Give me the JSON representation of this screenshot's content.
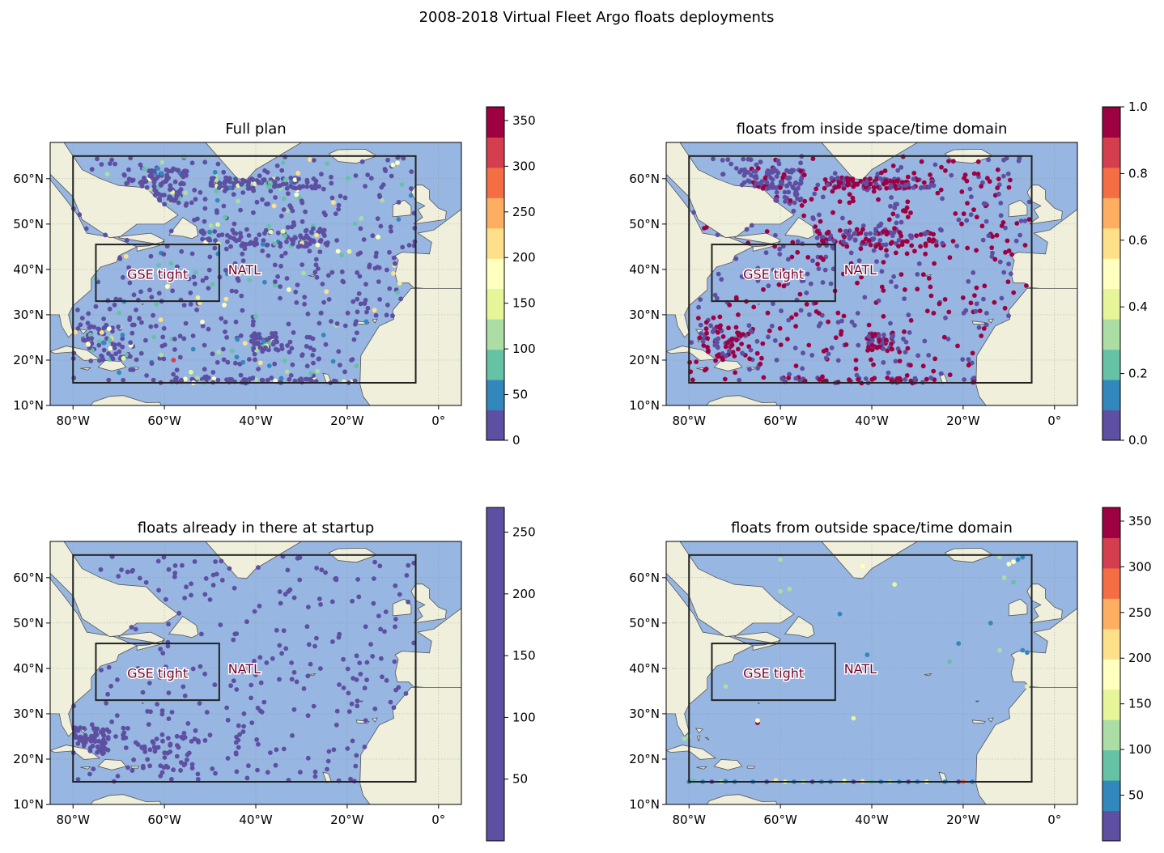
{
  "figure": {
    "title": "2008-2018 Virtual Fleet Argo floats deployments",
    "colors": {
      "ocean": "#97b6e1",
      "land": "#efefdb",
      "coast": "#555555",
      "box": "#222222",
      "label_text": "#7a0026",
      "label_halo": "#ffffff"
    },
    "map_extent": {
      "lon": [
        -85,
        5
      ],
      "lat": [
        10,
        68
      ]
    },
    "x_ticks": [
      {
        "lon": -80,
        "label": "80°W"
      },
      {
        "lon": -60,
        "label": "60°W"
      },
      {
        "lon": -40,
        "label": "40°W"
      },
      {
        "lon": -20,
        "label": "20°W"
      },
      {
        "lon": 0,
        "label": "0°"
      }
    ],
    "y_ticks": [
      {
        "lat": 10,
        "label": "10°N"
      },
      {
        "lat": 20,
        "label": "20°N"
      },
      {
        "lat": 30,
        "label": "30°N"
      },
      {
        "lat": 40,
        "label": "40°N"
      },
      {
        "lat": 50,
        "label": "50°N"
      },
      {
        "lat": 60,
        "label": "60°N"
      }
    ],
    "regions": [
      {
        "name": "NATL",
        "lon": [
          -80,
          -5
        ],
        "lat": [
          15,
          65
        ],
        "label": "NATL",
        "label_lon": -42.5,
        "label_lat": 40
      },
      {
        "name": "GSE tight",
        "lon": [
          -75,
          -48
        ],
        "lat": [
          33,
          45.5
        ],
        "label": "GSE tight",
        "label_lon": -61.5,
        "label_lat": 39
      }
    ]
  },
  "panels": [
    {
      "id": "full-plan",
      "title": "Full plan",
      "colorbar": {
        "colormap": [
          "#5e4fa2",
          "#3288bd",
          "#66c2a5",
          "#abdda4",
          "#e6f598",
          "#ffffbf",
          "#fee08b",
          "#fdae61",
          "#f46d43",
          "#d53e4f",
          "#9e0142"
        ],
        "range": [
          0,
          365
        ],
        "ticks": [
          {
            "v": 0,
            "label": "0"
          },
          {
            "v": 50,
            "label": "50"
          },
          {
            "v": 100,
            "label": "100"
          },
          {
            "v": 150,
            "label": "150"
          },
          {
            "v": 200,
            "label": "200"
          },
          {
            "v": 250,
            "label": "250"
          },
          {
            "v": 300,
            "label": "300"
          },
          {
            "v": 350,
            "label": "350"
          }
        ]
      },
      "points": {
        "n": 1000,
        "seed": 11,
        "clusters": [
          [
            -62,
            58,
            7,
            4,
            0.1
          ],
          [
            -38,
            59,
            12,
            1.2,
            0.1
          ],
          [
            -38,
            47,
            14,
            2.0,
            0.08
          ],
          [
            -38,
            24,
            3,
            2,
            0.04
          ],
          [
            -72,
            24,
            6,
            4,
            0.06
          ],
          [
            -30,
            15.5,
            30,
            0.6,
            0.07
          ]
        ],
        "value_mode": "mix",
        "mix": [
          [
            0.78,
            [
              0,
              20
            ]
          ],
          [
            0.12,
            [
              20,
              100
            ]
          ],
          [
            0.1,
            [
              100,
              230
            ]
          ]
        ],
        "extras": [
          [
            -58,
            20,
            330
          ],
          [
            -10,
            63,
            180
          ],
          [
            -9,
            63.5,
            190
          ],
          [
            -22,
            44,
            170
          ],
          [
            -36,
            54,
            200
          ]
        ]
      }
    },
    {
      "id": "inside-domain",
      "title": "floats from inside space/time domain",
      "colorbar": {
        "colormap": [
          "#5e4fa2",
          "#3288bd",
          "#66c2a5",
          "#abdda4",
          "#e6f598",
          "#ffffbf",
          "#fee08b",
          "#fdae61",
          "#f46d43",
          "#d53e4f",
          "#9e0142"
        ],
        "range": [
          0,
          1
        ],
        "ticks": [
          {
            "v": 0,
            "label": "0.0"
          },
          {
            "v": 0.2,
            "label": "0.2"
          },
          {
            "v": 0.4,
            "label": "0.4"
          },
          {
            "v": 0.6,
            "label": "0.6"
          },
          {
            "v": 0.8,
            "label": "0.8"
          },
          {
            "v": 1,
            "label": "1.0"
          }
        ]
      },
      "points": {
        "n": 1000,
        "seed": 11,
        "clusters": [
          [
            -62,
            58,
            7,
            4,
            0.1
          ],
          [
            -38,
            59,
            12,
            1.2,
            0.1
          ],
          [
            -38,
            47,
            14,
            2.0,
            0.08
          ],
          [
            -38,
            24,
            3,
            2,
            0.04
          ],
          [
            -72,
            24,
            6,
            4,
            0.06
          ],
          [
            -30,
            15.5,
            30,
            0.6,
            0.07
          ]
        ],
        "value_mode": "binary",
        "binary_p": 0.45,
        "extras": []
      }
    },
    {
      "id": "startup",
      "title": "floats already in there at startup",
      "colorbar": {
        "colormap": [
          "#5e4fa2",
          "#5e4fa2"
        ],
        "range": [
          0,
          270
        ],
        "ticks": [
          {
            "v": 50,
            "label": "50"
          },
          {
            "v": 100,
            "label": "100"
          },
          {
            "v": 150,
            "label": "150"
          },
          {
            "v": 200,
            "label": "200"
          },
          {
            "v": 250,
            "label": "250"
          }
        ]
      },
      "points": {
        "n": 400,
        "seed": 23,
        "clusters": [
          [
            -76,
            24,
            4,
            3,
            0.12
          ],
          [
            -62,
            22,
            10,
            4,
            0.1
          ]
        ],
        "value_mode": "const",
        "extras": []
      }
    },
    {
      "id": "outside-domain",
      "title": "floats from outside space/time domain",
      "colorbar": {
        "colormap": [
          "#5e4fa2",
          "#3288bd",
          "#66c2a5",
          "#abdda4",
          "#e6f598",
          "#ffffbf",
          "#fee08b",
          "#fdae61",
          "#f46d43",
          "#d53e4f",
          "#9e0142"
        ],
        "range": [
          0,
          365
        ],
        "ticks": [
          {
            "v": 50,
            "label": "50"
          },
          {
            "v": 100,
            "label": "100"
          },
          {
            "v": 150,
            "label": "150"
          },
          {
            "v": 200,
            "label": "200"
          },
          {
            "v": 250,
            "label": "250"
          },
          {
            "v": 300,
            "label": "300"
          },
          {
            "v": 350,
            "label": "350"
          }
        ]
      },
      "points": {
        "n": 0,
        "seed": 5,
        "clusters": [],
        "value_mode": "explicit",
        "extras": [
          [
            -80,
            15,
            60
          ],
          [
            -79,
            15.2,
            80
          ],
          [
            -77,
            15,
            40
          ],
          [
            -75,
            15,
            30
          ],
          [
            -73,
            15,
            120
          ],
          [
            -72,
            15.1,
            50
          ],
          [
            -70,
            15,
            40
          ],
          [
            -66,
            15,
            60
          ],
          [
            -63,
            15,
            30
          ],
          [
            -61,
            15.3,
            200
          ],
          [
            -59,
            15,
            150
          ],
          [
            -57,
            15,
            40
          ],
          [
            -55,
            15,
            100
          ],
          [
            -53,
            15,
            30
          ],
          [
            -51,
            15,
            60
          ],
          [
            -49,
            15,
            40
          ],
          [
            -46,
            15.2,
            140
          ],
          [
            -44,
            15,
            30
          ],
          [
            -42,
            15.1,
            200
          ],
          [
            -40,
            15,
            80
          ],
          [
            -38,
            15,
            40
          ],
          [
            -36,
            15,
            110
          ],
          [
            -34,
            15,
            60
          ],
          [
            -32,
            15,
            30
          ],
          [
            -30,
            15,
            40
          ],
          [
            -28,
            15,
            150
          ],
          [
            -24,
            15,
            50
          ],
          [
            -21,
            15,
            30
          ],
          [
            -20,
            15,
            280
          ],
          [
            -18,
            15,
            40
          ],
          [
            -81,
            24.5,
            120
          ],
          [
            -80,
            25,
            100
          ],
          [
            -65,
            28,
            340
          ],
          [
            -65,
            28.5,
            170
          ],
          [
            -72,
            36,
            120
          ],
          [
            -44,
            29,
            160
          ],
          [
            -35,
            58.5,
            140
          ],
          [
            -42,
            62.5,
            190
          ],
          [
            -60,
            57,
            110
          ],
          [
            -58,
            57.5,
            130
          ],
          [
            -60,
            64,
            120
          ],
          [
            -47,
            52,
            40
          ],
          [
            -41,
            43,
            40
          ],
          [
            -23,
            41.5,
            90
          ],
          [
            -21,
            45.5,
            50
          ],
          [
            -14,
            50,
            60
          ],
          [
            -12,
            44,
            100
          ],
          [
            -7,
            44,
            40
          ],
          [
            -6,
            43.5,
            60
          ],
          [
            -10,
            63,
            170
          ],
          [
            -9,
            63.5,
            190
          ],
          [
            -8,
            64,
            60
          ],
          [
            -7,
            64.5,
            50
          ],
          [
            -11,
            60,
            100
          ],
          [
            -9,
            59,
            70
          ],
          [
            -6,
            36,
            160
          ],
          [
            -12,
            64.5,
            110
          ]
        ]
      }
    }
  ]
}
